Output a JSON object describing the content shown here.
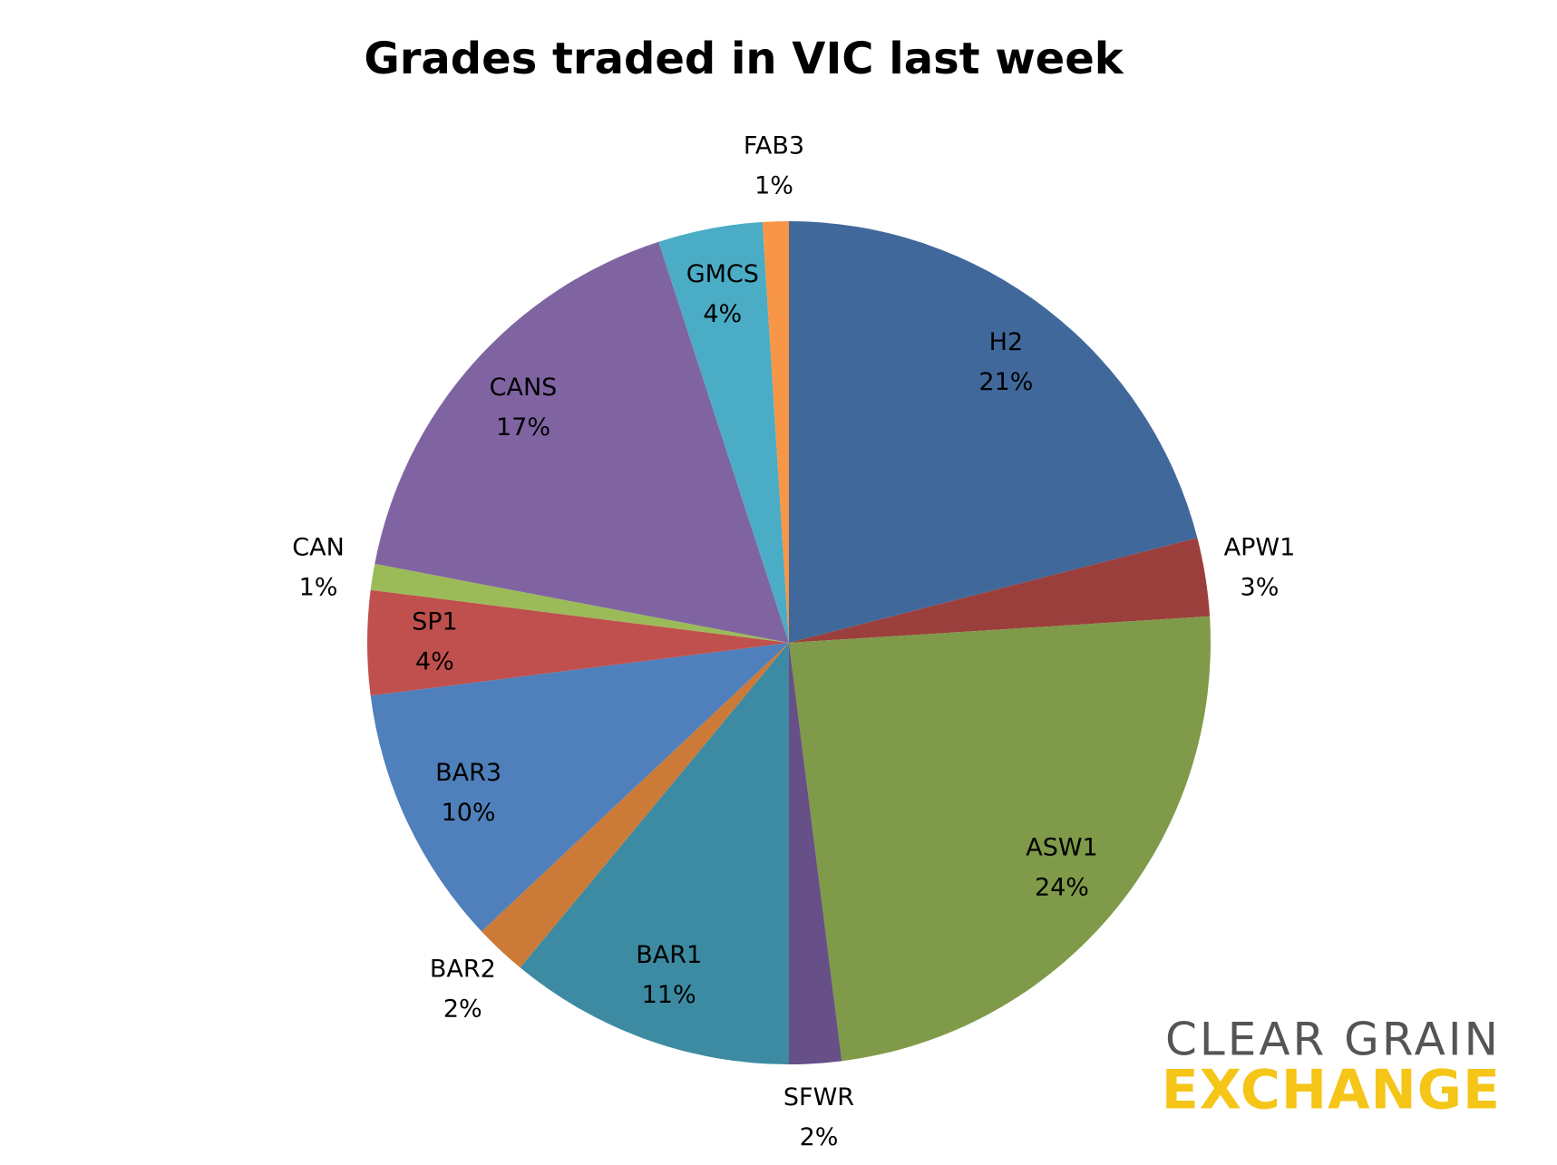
{
  "chart_data": {
    "type": "pie",
    "title": "Grades traded in VIC last week",
    "categories": [
      "H2",
      "APW1",
      "ASW1",
      "SFWR",
      "BAR1",
      "BAR2",
      "BAR3",
      "SP1",
      "CAN",
      "CANS",
      "GMCS",
      "FAB3"
    ],
    "values": [
      21,
      3,
      24,
      2,
      11,
      2,
      10,
      4,
      1,
      17,
      4,
      1
    ],
    "value_labels": [
      "21%",
      "3%",
      "24%",
      "2%",
      "11%",
      "2%",
      "10%",
      "4%",
      "1%",
      "17%",
      "4%",
      "1%"
    ],
    "colors": [
      "#41689b",
      "#9b3f3d",
      "#7f9a48",
      "#674f87",
      "#3c8ba3",
      "#cc7a37",
      "#4f80bc",
      "#c0504d",
      "#9bbb59",
      "#8064a2",
      "#4bacc6",
      "#f79646"
    ]
  },
  "logo": {
    "line1": "CLEAR GRAIN",
    "line2": "EXCHANGE"
  }
}
